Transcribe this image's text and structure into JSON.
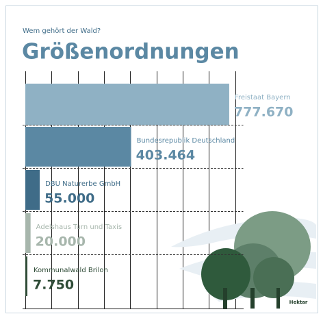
{
  "chart_data": {
    "type": "bar",
    "orientation": "horizontal",
    "subtitle": "Wem gehört der Wald?",
    "title": "Größenordnungen",
    "xlabel": "Hektar",
    "categories": [
      "Freistaat Bayern",
      "Bundesrepublik Deutschland",
      "DBU Naturerbe GmbH",
      "Adelshaus Turn und Taxis",
      "Kommunalwald Brilon"
    ],
    "values": [
      777670,
      403464,
      55000,
      20000,
      7750
    ],
    "value_labels": [
      "777.670",
      "403.464",
      "55.000",
      "20.000",
      "7.750"
    ],
    "colors": [
      "#8fb1c4",
      "#5b88a3",
      "#3f6c88",
      "#a7b6ac",
      "#2e4b36"
    ],
    "xlim": [
      0,
      800000
    ],
    "xticks": [
      0,
      100000,
      200000,
      300000,
      400000,
      500000,
      600000,
      700000,
      800000
    ],
    "grid": true
  }
}
